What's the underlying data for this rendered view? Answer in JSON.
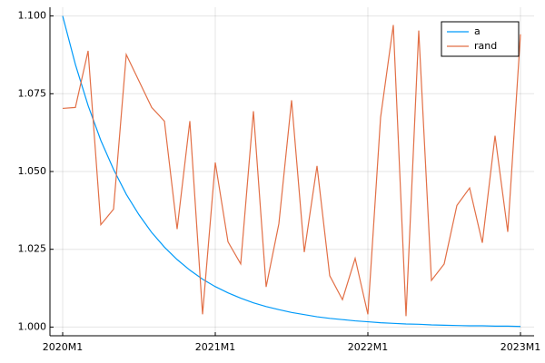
{
  "chart_data": {
    "type": "line",
    "categories": [
      "2020M1",
      null,
      null,
      null,
      null,
      null,
      null,
      null,
      null,
      null,
      null,
      null,
      "2021M1",
      null,
      null,
      null,
      null,
      null,
      null,
      null,
      null,
      null,
      null,
      null,
      "2022M1",
      null,
      null,
      null,
      null,
      null,
      null,
      null,
      null,
      null,
      null,
      null,
      "2023M1"
    ],
    "series": [
      {
        "name": "a",
        "color": "#009af9",
        "values": [
          1.1,
          1.0844,
          1.0712,
          1.06,
          1.0507,
          1.0427,
          1.0361,
          1.0304,
          1.0257,
          1.0217,
          1.0183,
          1.0154,
          1.013,
          1.011,
          1.0093,
          1.0078,
          1.0066,
          1.0056,
          1.0047,
          1.004,
          1.0033,
          1.0028,
          1.0024,
          1.002,
          1.0017,
          1.0014,
          1.0012,
          1.001,
          1.0009,
          1.0007,
          1.0006,
          1.0005,
          1.0004,
          1.0004,
          1.0003,
          1.0003,
          1.0002
        ]
      },
      {
        "name": "rand",
        "color": "#e26f46",
        "values": [
          1.0703,
          1.0706,
          1.0888,
          1.0329,
          1.0379,
          1.0876,
          1.0791,
          1.0706,
          1.0662,
          1.0315,
          1.0662,
          1.0041,
          1.0529,
          1.0274,
          1.0203,
          1.0694,
          1.0129,
          1.0332,
          1.0729,
          1.0241,
          1.0518,
          1.0165,
          1.0088,
          1.0221,
          1.0041,
          1.0674,
          1.0971,
          1.0035,
          1.0953,
          1.015,
          1.0203,
          1.0391,
          1.0447,
          1.0271,
          1.0615,
          1.0306,
          1.0941
        ]
      }
    ],
    "ylim": [
      0.9972,
      1.1028
    ],
    "yticks": [
      {
        "value": 1.0,
        "label": "1.000"
      },
      {
        "value": 1.025,
        "label": "1.025"
      },
      {
        "value": 1.05,
        "label": "1.050"
      },
      {
        "value": 1.075,
        "label": "1.075"
      },
      {
        "value": 1.1,
        "label": "1.100"
      }
    ],
    "grid": true,
    "legend": "top-right"
  }
}
